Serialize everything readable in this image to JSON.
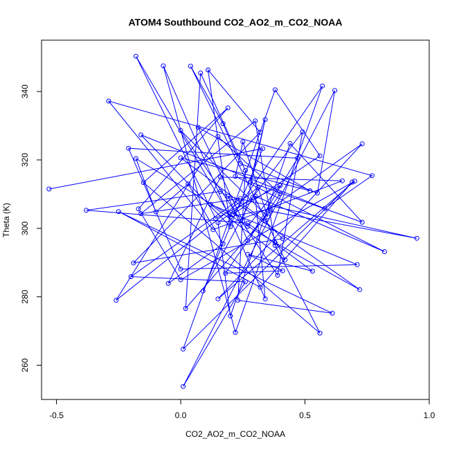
{
  "chart_data": {
    "type": "line",
    "title": "ATOM4 Southbound CO2_AO2_m_CO2_NOAA",
    "xlabel": "CO2_AO2_m_CO2_NOAA",
    "ylabel": "Theta (K)",
    "xlim": [
      -0.56,
      1.0
    ],
    "ylim": [
      250,
      355
    ],
    "xticks": [
      -0.5,
      0.0,
      0.5,
      1.0
    ],
    "xtick_labels": [
      "-0.5",
      "0.0",
      "0.5",
      "1.0"
    ],
    "yticks": [
      260,
      280,
      300,
      320,
      340
    ],
    "ytick_labels": [
      "260",
      "280",
      "300",
      "320",
      "340"
    ],
    "grid": false,
    "series": [
      {
        "color": "#0000ff",
        "markers": "open-circle",
        "points": [
          [
            -0.53,
            311.5
          ],
          [
            0.33,
            323.3
          ],
          [
            0.09,
            281.7
          ],
          [
            0.31,
            311.9
          ],
          [
            -0.26,
            279.0
          ],
          [
            0.15,
            326.8
          ],
          [
            0.4,
            310.1
          ],
          [
            0.18,
            286.9
          ],
          [
            0.41,
            287.6
          ],
          [
            0.27,
            292.4
          ],
          [
            0.53,
            287.5
          ],
          [
            0.27,
            301.5
          ],
          [
            -0.38,
            305.3
          ],
          [
            0.16,
            310.8
          ],
          [
            0.72,
            282.1
          ],
          [
            0.38,
            295.8
          ],
          [
            -0.18,
            320.4
          ],
          [
            -0.1,
            304.8
          ],
          [
            0.03,
            313.0
          ],
          [
            0.17,
            295.5
          ],
          [
            -0.05,
            283.9
          ],
          [
            0.16,
            315.0
          ],
          [
            0.65,
            313.9
          ],
          [
            0.13,
            299.6
          ],
          [
            -0.29,
            337.2
          ],
          [
            0.77,
            315.4
          ],
          [
            0.58,
            305.8
          ],
          [
            -0.16,
            327.3
          ],
          [
            0.2,
            300.5
          ],
          [
            0.11,
            346.3
          ],
          [
            0.32,
            328.1
          ],
          [
            -0.19,
            289.9
          ],
          [
            0.41,
            297.0
          ],
          [
            0.34,
            302.1
          ],
          [
            0.0,
            320.6
          ],
          [
            0.52,
            311.0
          ],
          [
            0.07,
            329.5
          ],
          [
            0.25,
            302.2
          ],
          [
            0.34,
            331.8
          ],
          [
            0.28,
            313.5
          ],
          [
            0.73,
            301.8
          ],
          [
            0.44,
            324.8
          ],
          [
            0.2,
            274.4
          ],
          [
            0.15,
            301.7
          ],
          [
            0.29,
            309.1
          ],
          [
            0.49,
            328.2
          ],
          [
            0.39,
            286.3
          ],
          [
            0.0,
            328.6
          ],
          [
            0.35,
            303.4
          ],
          [
            0.25,
            325.3
          ],
          [
            0.22,
            315.2
          ],
          [
            0.82,
            293.2
          ],
          [
            0.3,
            309.4
          ],
          [
            0.34,
            279.4
          ],
          [
            -0.07,
            347.5
          ],
          [
            0.22,
            269.6
          ],
          [
            0.57,
            341.6
          ],
          [
            0.21,
            304.1
          ],
          [
            0.56,
            321.2
          ],
          [
            0.38,
            340.5
          ],
          [
            0.01,
            264.7
          ],
          [
            0.69,
            313.5
          ],
          [
            0.32,
            282.8
          ],
          [
            -0.25,
            304.9
          ],
          [
            0.61,
            275.2
          ],
          [
            0.23,
            279.0
          ],
          [
            0.26,
            316.9
          ],
          [
            0.08,
            345.4
          ],
          [
            0.02,
            276.6
          ],
          [
            0.36,
            305.0
          ],
          [
            0.95,
            297.1
          ],
          [
            0.19,
            309.4
          ],
          [
            0.27,
            296.4
          ],
          [
            0.47,
            320.5
          ],
          [
            -0.21,
            323.4
          ],
          [
            0.0,
            288.1
          ],
          [
            0.71,
            289.4
          ],
          [
            0.12,
            307.0
          ],
          [
            0.42,
            290.8
          ],
          [
            0.04,
            347.4
          ],
          [
            0.17,
            330.6
          ],
          [
            0.24,
            318.9
          ],
          [
            0.55,
            310.3
          ],
          [
            0.62,
            340.3
          ],
          [
            0.01,
            253.8
          ],
          [
            0.26,
            284.4
          ],
          [
            -0.2,
            285.9
          ],
          [
            0.24,
            308.7
          ],
          [
            -0.16,
            304.3
          ],
          [
            0.3,
            331.4
          ],
          [
            0.38,
            295.0
          ],
          [
            0.56,
            269.4
          ],
          [
            -0.15,
            313.4
          ],
          [
            0.19,
            335.2
          ],
          [
            -0.17,
            305.7
          ],
          [
            -0.0,
            285.0
          ],
          [
            0.7,
            313.8
          ],
          [
            0.15,
            279.4
          ],
          [
            0.73,
            324.7
          ],
          [
            0.36,
            305.7
          ],
          [
            0.2,
            303.4
          ],
          [
            -0.18,
            350.3
          ],
          [
            0.14,
            302.9
          ],
          [
            0.4,
            312.5
          ],
          [
            0.27,
            300.6
          ]
        ]
      }
    ]
  }
}
